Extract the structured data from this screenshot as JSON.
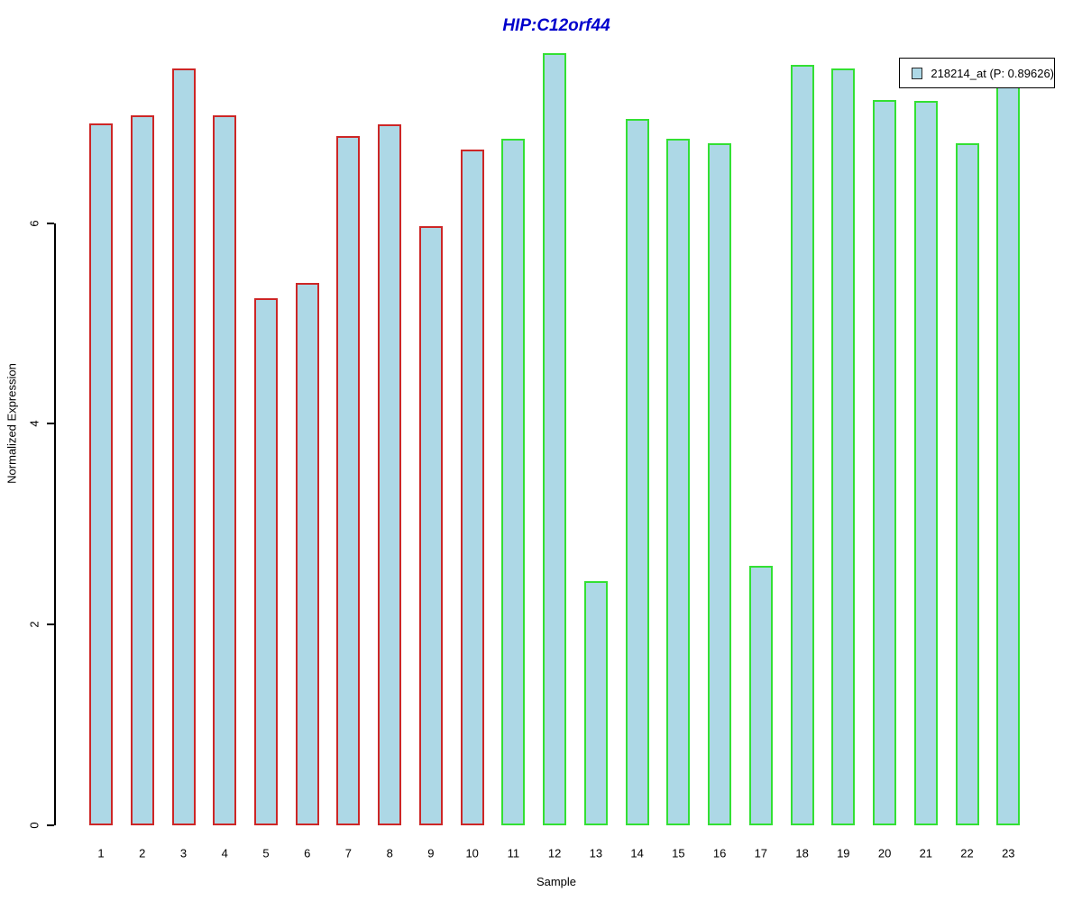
{
  "title": {
    "text": "HIP:C12orf44",
    "color": "#0000cc"
  },
  "axes": {
    "ylabel": "Normalized Expression",
    "xlabel": "Sample",
    "ytick_labels": [
      "0",
      "2",
      "4",
      "6"
    ]
  },
  "legend": {
    "label": "218214_at (P: 0.89626)",
    "swatch_color": "#add8e6",
    "position": "top-right"
  },
  "chart_data": {
    "type": "bar",
    "title": "HIP:C12orf44",
    "xlabel": "Sample",
    "ylabel": "Normalized Expression",
    "categories": [
      "1",
      "2",
      "3",
      "4",
      "5",
      "6",
      "7",
      "8",
      "9",
      "10",
      "11",
      "12",
      "13",
      "14",
      "15",
      "16",
      "17",
      "18",
      "19",
      "20",
      "21",
      "22",
      "23"
    ],
    "values": [
      6.99,
      7.07,
      7.54,
      7.07,
      5.25,
      5.4,
      6.87,
      6.98,
      5.97,
      6.73,
      6.84,
      7.69,
      2.43,
      7.04,
      6.84,
      6.8,
      2.59,
      7.58,
      7.54,
      7.23,
      7.22,
      6.8,
      7.6
    ],
    "bar_fill": "#add8e6",
    "groups": [
      {
        "label": "samples 1-10",
        "border_color": "#cd2626",
        "count": 10
      },
      {
        "label": "samples 11-23",
        "border_color": "#33e033",
        "count": 13
      }
    ],
    "yticks": [
      0,
      2,
      4,
      6
    ],
    "ylim": [
      0,
      7.75
    ],
    "grid": false,
    "legend": [
      "218214_at (P: 0.89626)"
    ],
    "legend_position": "top-right",
    "title_color": "#0000cc"
  }
}
